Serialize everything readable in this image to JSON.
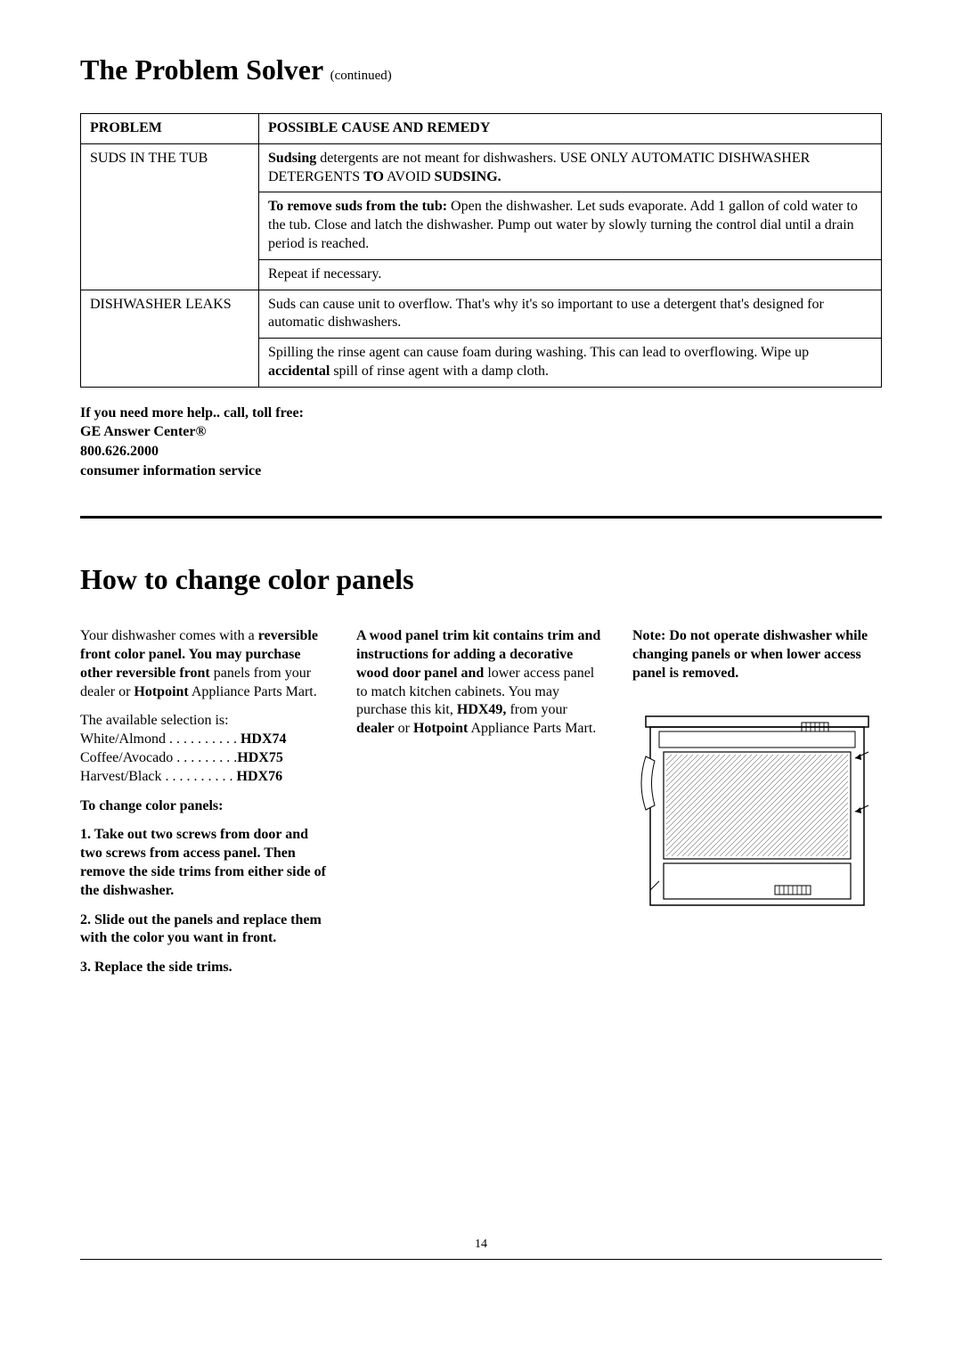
{
  "page_title_main": "The Problem Solver",
  "page_title_continued": "(continued)",
  "table": {
    "header_problem": "PROBLEM",
    "header_remedy": "POSSIBLE CAUSE AND REMEDY",
    "rows": [
      {
        "problem": "SUDS IN THE TUB",
        "remedies": [
          "<span class=\"bold\">Sudsing</span> detergents are not meant for dishwashers. USE ONLY AUTOMATIC DISHWASHER DETERGENTS <span class=\"bold\">TO</span> AVOID <span class=\"bold\">SUDSING.</span>",
          "<span class=\"bold\">To remove suds from the tub:</span> Open the dishwasher. Let suds evaporate. Add 1 gallon of cold water to the tub. Close and latch the dishwasher. Pump out water by slowly turning the control dial until a drain period is reached.",
          "Repeat if necessary."
        ]
      },
      {
        "problem": "DISHWASHER LEAKS",
        "remedies": [
          "Suds can cause unit to overflow. That's why it's so important to use a detergent that's designed for automatic dishwashers.",
          "Spilling the rinse agent can cause foam during washing. This can lead to overflowing. Wipe up <span class=\"bold\">accidental</span> spill of rinse agent with a damp cloth."
        ]
      }
    ]
  },
  "help": {
    "line1": "If you need more help.. call, toll free:",
    "line2_a": "GE Answer ",
    "line2_b": "Center®",
    "line3": "800.626.2000",
    "line4": "consumer information service"
  },
  "section2_title": "How to change color panels",
  "col1": {
    "p1_a": "Your dishwasher comes with a ",
    "p1_b": "reversible front color panel. You may purchase other reversible front",
    "p1_c": " panels from your dealer or ",
    "p1_d": "Hotpoint",
    "p1_e": " Appliance Parts Mart.",
    "selection_label": "The available selection is:",
    "sel1_a": "White/Almond . . . . . . . . . . ",
    "sel1_b": "HDX74",
    "sel2_a": "Coffee/Avocado . . . . . . . . .",
    "sel2_b": "HDX75",
    "sel3_a": "Harvest/Black . . . . . . . . . . ",
    "sel3_b": "HDX76",
    "change_label": "To change color panels:",
    "step1": "1. Take out two screws from door and two screws from access panel. Then remove the side trims from either side of the dishwasher.",
    "step2": "2. Slide out the panels and replace them with the color you want in front.",
    "step3": "3. Replace the side trims."
  },
  "col2": {
    "p_a": "A wood panel trim kit contains trim and instructions for adding a decorative wood door panel and",
    "p_b": " lower access panel to match kitchen cabinets. You may purchase this kit, ",
    "p_c": "HDX49,",
    "p_d": " from your ",
    "p_e": "dealer",
    "p_f": " or ",
    "p_g": "Hotpoint",
    "p_h": " Appliance Parts Mart."
  },
  "col3": {
    "note": "Note: Do not operate dishwasher while changing panels or when lower access panel is removed."
  },
  "page_number": "14",
  "colors": {
    "text": "#000000",
    "background": "#ffffff",
    "border": "#000000"
  }
}
